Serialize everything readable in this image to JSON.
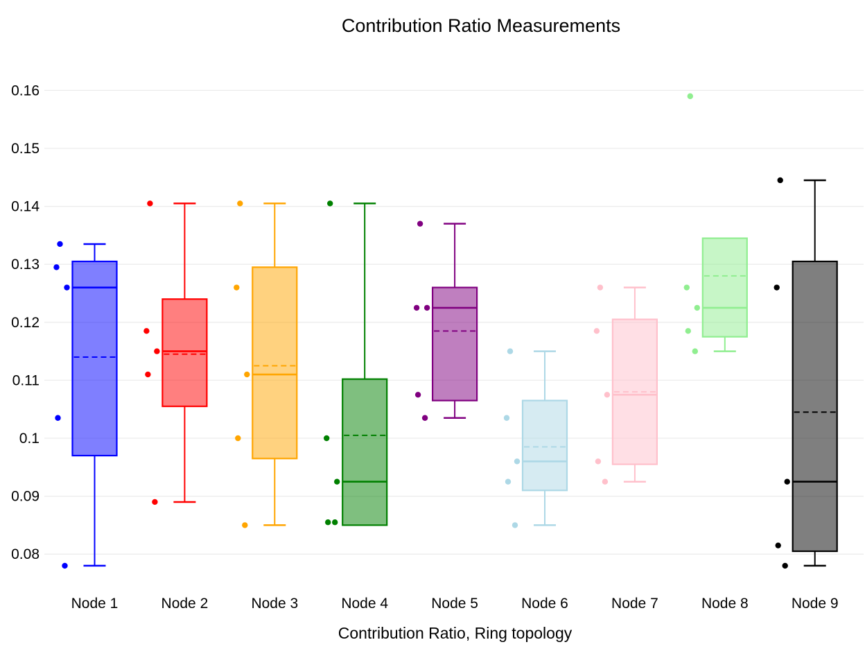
{
  "title": "Contribution Ratio Measurements",
  "xlabel": "Contribution Ratio, Ring topology",
  "chart_data": {
    "type": "box",
    "title": "Contribution Ratio Measurements",
    "xlabel": "Contribution Ratio, Ring topology",
    "ylabel": "",
    "ylim": [
      0.0745,
      0.1655
    ],
    "yticks": [
      0.16,
      0.15,
      0.14,
      0.13,
      0.12,
      0.11,
      0.1,
      0.09,
      0.08
    ],
    "ytick_labels": [
      "0.16",
      "0.15",
      "0.14",
      "0.13",
      "0.12",
      "0.11",
      "0.1",
      "0.09",
      "0.08"
    ],
    "grid": "horizontal-only",
    "grid_color": "#ececec",
    "background": "#ffffff",
    "median_line_style": "solid",
    "mean_line_style": "dashed",
    "categories": [
      "Node 1",
      "Node 2",
      "Node 3",
      "Node 4",
      "Node 5",
      "Node 6",
      "Node 7",
      "Node 8",
      "Node 9"
    ],
    "nodes": [
      {
        "label": "Node 1",
        "color": "#0000ff",
        "fill": "rgba(0,0,255,0.5)",
        "whisker_low": 0.078,
        "q1": 0.097,
        "median": 0.126,
        "mean": 0.114,
        "q3": 0.1305,
        "whisker_high": 0.1335,
        "points": [
          0.1335,
          0.1295,
          0.126,
          0.1035,
          0.078
        ]
      },
      {
        "label": "Node 2",
        "color": "#ff0000",
        "fill": "rgba(255,0,0,0.5)",
        "whisker_low": 0.089,
        "q1": 0.1055,
        "median": 0.115,
        "mean": 0.1145,
        "q3": 0.124,
        "whisker_high": 0.1405,
        "points": [
          0.1405,
          0.1185,
          0.115,
          0.111,
          0.089
        ]
      },
      {
        "label": "Node 3",
        "color": "#ffa500",
        "fill": "rgba(255,165,0,0.5)",
        "whisker_low": 0.085,
        "q1": 0.0965,
        "median": 0.111,
        "mean": 0.1125,
        "q3": 0.1295,
        "whisker_high": 0.1405,
        "points": [
          0.1405,
          0.126,
          0.111,
          0.1,
          0.085
        ]
      },
      {
        "label": "Node 4",
        "color": "#008000",
        "fill": "rgba(0,128,0,0.5)",
        "whisker_low": 0.085,
        "q1": 0.085,
        "median": 0.0925,
        "mean": 0.1005,
        "q3": 0.1102,
        "whisker_high": 0.1405,
        "points": [
          0.1405,
          0.1,
          0.0925,
          0.0855,
          0.0855
        ]
      },
      {
        "label": "Node 5",
        "color": "#800080",
        "fill": "rgba(128,0,128,0.5)",
        "whisker_low": 0.1035,
        "q1": 0.1065,
        "median": 0.1225,
        "mean": 0.1185,
        "q3": 0.126,
        "whisker_high": 0.137,
        "points": [
          0.137,
          0.1225,
          0.1225,
          0.1075,
          0.1035
        ]
      },
      {
        "label": "Node 6",
        "color": "#add8e6",
        "fill": "rgba(173,216,230,0.5)",
        "whisker_low": 0.085,
        "q1": 0.091,
        "median": 0.096,
        "mean": 0.0985,
        "q3": 0.1065,
        "whisker_high": 0.115,
        "points": [
          0.115,
          0.1035,
          0.096,
          0.0925,
          0.085
        ]
      },
      {
        "label": "Node 7",
        "color": "#ffc0cb",
        "fill": "rgba(255,192,203,0.5)",
        "whisker_low": 0.0925,
        "q1": 0.0955,
        "median": 0.1075,
        "mean": 0.108,
        "q3": 0.1205,
        "whisker_high": 0.126,
        "points": [
          0.126,
          0.1185,
          0.1075,
          0.096,
          0.0925
        ]
      },
      {
        "label": "Node 8",
        "color": "#90ee90",
        "fill": "rgba(144,238,144,0.5)",
        "whisker_low": 0.115,
        "q1": 0.1175,
        "median": 0.1225,
        "mean": 0.128,
        "q3": 0.1345,
        "whisker_high": 0.1345,
        "points": [
          0.159,
          0.126,
          0.1225,
          0.1185,
          0.115
        ]
      },
      {
        "label": "Node 9",
        "color": "#000000",
        "fill": "rgba(0,0,0,0.5)",
        "whisker_low": 0.078,
        "q1": 0.0805,
        "median": 0.0925,
        "mean": 0.1045,
        "q3": 0.1305,
        "whisker_high": 0.1445,
        "points": [
          0.1445,
          0.126,
          0.0925,
          0.0815,
          0.078
        ]
      }
    ]
  }
}
